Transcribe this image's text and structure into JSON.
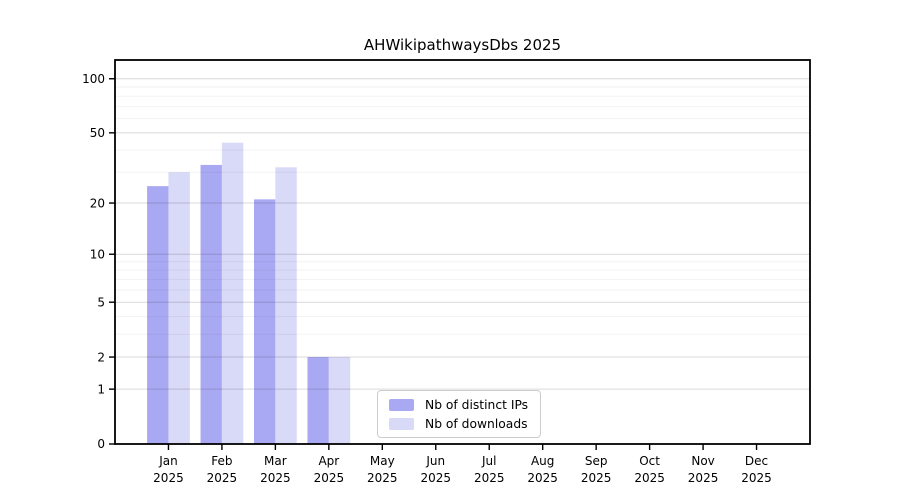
{
  "figure": {
    "title": "AHWikipathwaysDbs 2025"
  },
  "chart_data": {
    "type": "bar",
    "title": "AHWikipathwaysDbs 2025",
    "year": "2025",
    "categories": [
      "Jan",
      "Feb",
      "Mar",
      "Apr",
      "May",
      "Jun",
      "Jul",
      "Aug",
      "Sep",
      "Oct",
      "Nov",
      "Dec"
    ],
    "series": [
      {
        "name": "Nb of distinct IPs",
        "color": "#a9a9f3",
        "values": [
          25,
          33,
          21,
          2,
          0,
          0,
          0,
          0,
          0,
          0,
          0,
          0
        ]
      },
      {
        "name": "Nb of downloads",
        "color": "#d9d9f8",
        "values": [
          30,
          44,
          32,
          2,
          0,
          0,
          0,
          0,
          0,
          0,
          0,
          0
        ]
      }
    ],
    "yscale": "log10(1+y)",
    "yticks": [
      0,
      1,
      2,
      5,
      10,
      20,
      50,
      100
    ],
    "minor_yticks": [
      3,
      4,
      6,
      7,
      8,
      9,
      30,
      40,
      60,
      70,
      80,
      90
    ],
    "ylim": [
      0,
      127
    ],
    "grid": true,
    "legend_position": "bottom-center"
  }
}
